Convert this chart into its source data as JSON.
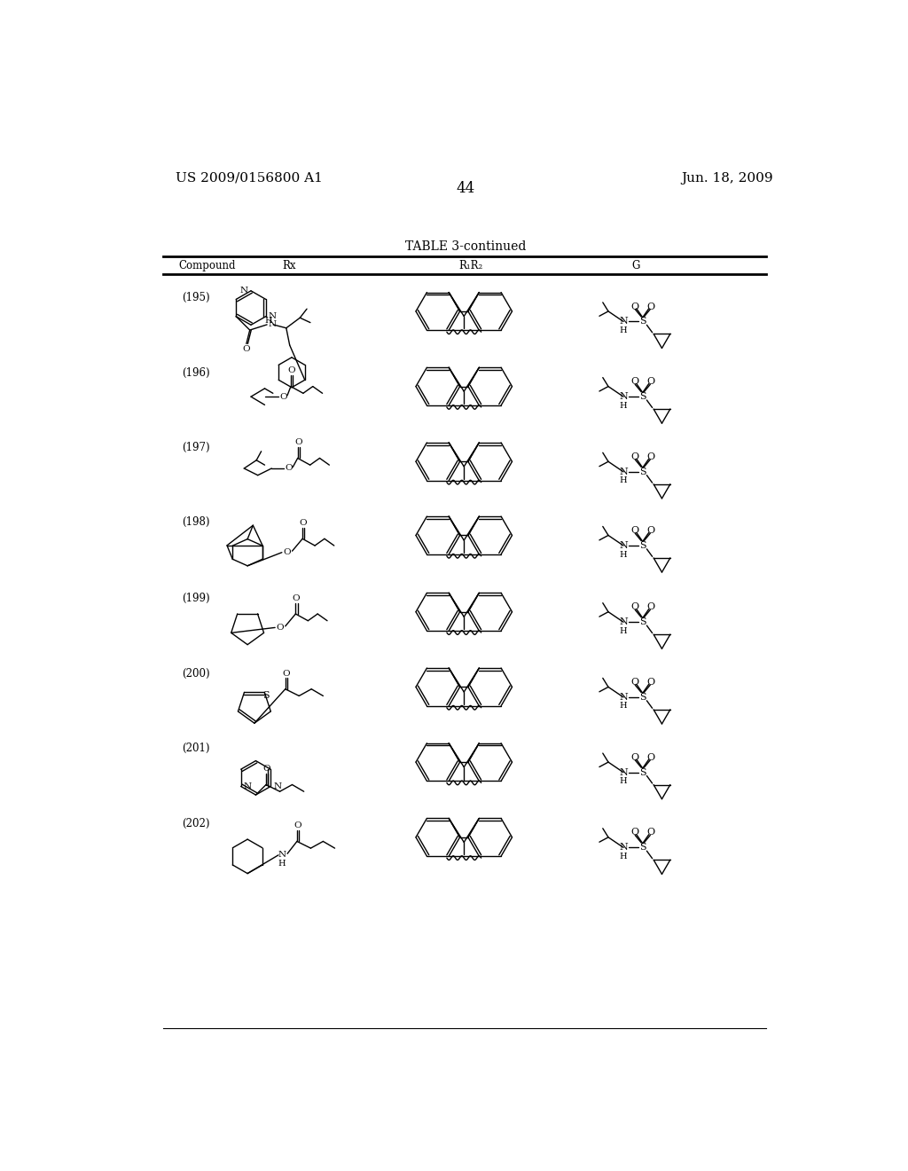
{
  "title_left": "US 2009/0156800 A1",
  "title_right": "Jun. 18, 2009",
  "page_number": "44",
  "table_title": "TABLE 3-continued",
  "col_headers": [
    "Compound",
    "Rx",
    "R₁R₂",
    "G"
  ],
  "compounds": [
    "(195)",
    "(196)",
    "(197)",
    "(198)",
    "(199)",
    "(200)",
    "(201)",
    "(202)"
  ],
  "background_color": "#ffffff",
  "text_color": "#000000"
}
